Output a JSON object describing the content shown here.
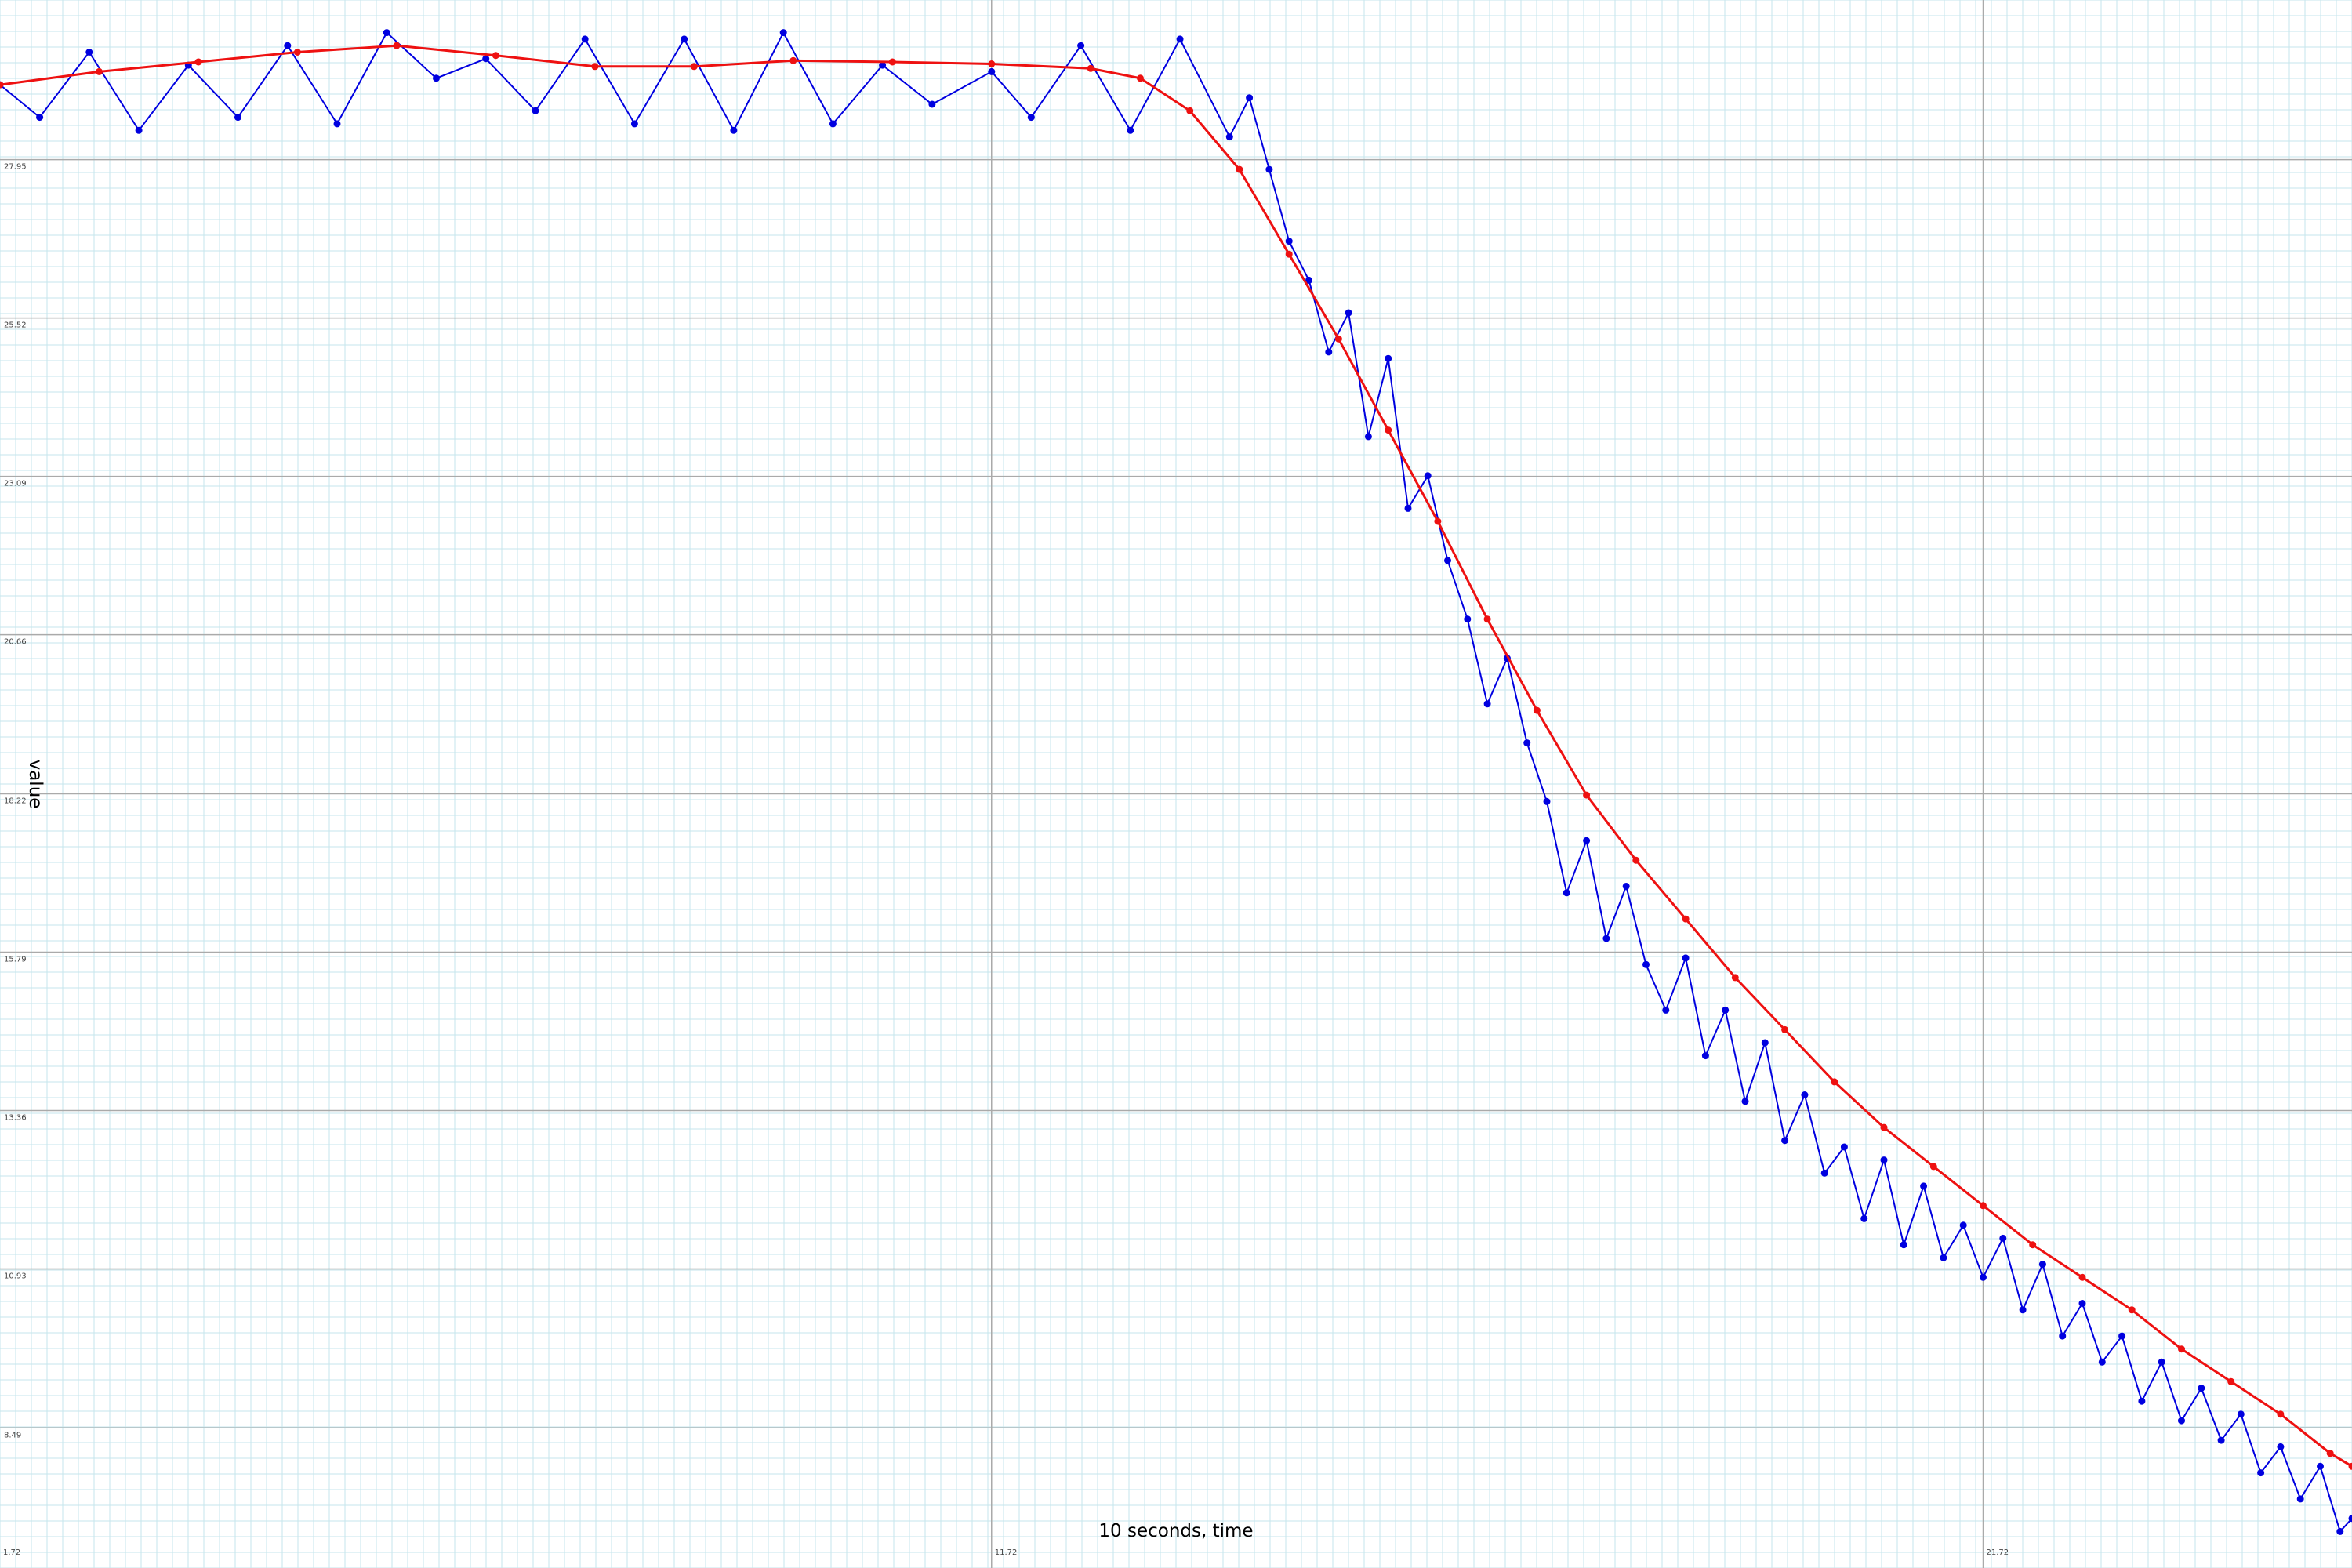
{
  "chart_data": {
    "type": "line",
    "xlabel": "10 seconds, time",
    "ylabel": "value",
    "x_ticks": [
      "1.72",
      "11.72",
      "21.72"
    ],
    "y_ticks": [
      "8.49",
      "10.93",
      "13.36",
      "15.79",
      "18.22",
      "20.66",
      "23.09",
      "25.52",
      "27.95"
    ],
    "xlim": [
      1.72,
      25.44
    ],
    "ylim": [
      6.34,
      30.4
    ],
    "grid": true,
    "legend": "none",
    "colors": {
      "raw": "#0000e0",
      "smoothed": "#ee1111",
      "minor_grid": "#c6e6ec",
      "major_grid": "#aaaaaa"
    },
    "series": [
      {
        "key": "raw",
        "x": [
          1.72,
          2.12,
          2.62,
          3.12,
          3.62,
          4.12,
          4.62,
          5.12,
          5.62,
          6.12,
          6.62,
          7.12,
          7.62,
          8.12,
          8.62,
          9.12,
          9.62,
          10.12,
          10.62,
          11.12,
          11.72,
          12.12,
          12.62,
          13.12,
          13.62,
          14.12,
          14.32,
          14.52,
          14.72,
          14.92,
          15.12,
          15.32,
          15.52,
          15.72,
          15.92,
          16.12,
          16.32,
          16.52,
          16.72,
          16.92,
          17.12,
          17.32,
          17.52,
          17.72,
          17.92,
          18.12,
          18.32,
          18.52,
          18.72,
          18.92,
          19.12,
          19.32,
          19.52,
          19.72,
          19.92,
          20.12,
          20.32,
          20.52,
          20.72,
          20.92,
          21.12,
          21.32,
          21.52,
          21.72,
          21.92,
          22.12,
          22.32,
          22.52,
          22.72,
          22.92,
          23.12,
          23.32,
          23.52,
          23.72,
          23.92,
          24.12,
          24.32,
          24.52,
          24.72,
          24.92,
          25.12,
          25.32,
          25.44
        ],
        "y": [
          29.1,
          28.6,
          29.6,
          28.4,
          29.4,
          28.6,
          29.7,
          28.5,
          29.9,
          29.2,
          29.5,
          28.7,
          29.8,
          28.5,
          29.8,
          28.4,
          29.9,
          28.5,
          29.4,
          28.8,
          29.3,
          28.6,
          29.7,
          28.4,
          29.8,
          28.3,
          28.9,
          27.8,
          26.7,
          26.1,
          25.0,
          25.6,
          23.7,
          24.9,
          22.6,
          23.1,
          21.8,
          20.9,
          19.6,
          20.3,
          19.0,
          18.1,
          16.7,
          17.5,
          16.0,
          16.8,
          15.6,
          14.9,
          15.7,
          14.2,
          14.9,
          13.5,
          14.4,
          12.9,
          13.6,
          12.4,
          12.8,
          11.7,
          12.6,
          11.3,
          12.2,
          11.1,
          11.6,
          10.8,
          11.4,
          10.3,
          11.0,
          9.9,
          10.4,
          9.5,
          9.9,
          8.9,
          9.5,
          8.6,
          9.1,
          8.3,
          8.7,
          7.8,
          8.2,
          7.4,
          7.9,
          6.9,
          7.1
        ]
      },
      {
        "key": "smoothed",
        "x": [
          1.72,
          2.72,
          3.72,
          4.72,
          5.72,
          6.72,
          7.72,
          8.72,
          9.72,
          10.72,
          11.72,
          12.72,
          13.22,
          13.72,
          14.22,
          14.72,
          15.22,
          15.72,
          16.22,
          16.72,
          17.22,
          17.72,
          18.22,
          18.72,
          19.22,
          19.72,
          20.22,
          20.72,
          21.22,
          21.72,
          22.22,
          22.72,
          23.22,
          23.72,
          24.22,
          24.72,
          25.22,
          25.44
        ],
        "y": [
          29.1,
          29.3,
          29.45,
          29.6,
          29.7,
          29.55,
          29.38,
          29.38,
          29.47,
          29.45,
          29.42,
          29.35,
          29.2,
          28.7,
          27.8,
          26.5,
          25.2,
          23.8,
          22.4,
          20.9,
          19.5,
          18.2,
          17.2,
          16.3,
          15.4,
          14.6,
          13.8,
          13.1,
          12.5,
          11.9,
          11.3,
          10.8,
          10.3,
          9.7,
          9.2,
          8.7,
          8.1,
          7.9
        ]
      }
    ]
  }
}
